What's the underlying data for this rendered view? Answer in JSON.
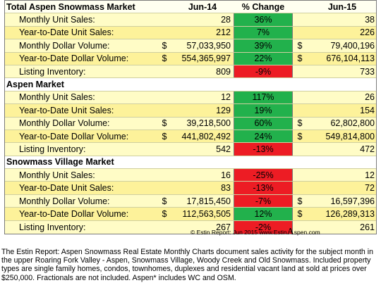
{
  "sections": [
    {
      "title": "Total Aspen Snowmass Market",
      "col_prev": "Jun-14",
      "col_change": "% Change",
      "col_curr": "Jun-15",
      "rows": [
        {
          "label": "Monthly Unit Sales:",
          "d1": "",
          "prev": "28",
          "change": "36%",
          "dir": "pos",
          "d2": "",
          "curr": "38"
        },
        {
          "label": "Year-to-Date Unit Sales:",
          "d1": "",
          "prev": "212",
          "change": "7%",
          "dir": "pos",
          "d2": "",
          "curr": "226"
        },
        {
          "label": "Monthly Dollar Volume:",
          "d1": "$",
          "prev": "57,033,950",
          "change": "39%",
          "dir": "pos",
          "d2": "$",
          "curr": "79,400,196"
        },
        {
          "label": "Year-to-Date Dollar Volume:",
          "d1": "$",
          "prev": "554,365,997",
          "change": "22%",
          "dir": "pos",
          "d2": "$",
          "curr": "676,104,113"
        },
        {
          "label": "Listing Inventory:",
          "d1": "",
          "prev": "809",
          "change": "-9%",
          "dir": "neg",
          "d2": "",
          "curr": "733"
        }
      ]
    },
    {
      "title": "Aspen Market",
      "rows": [
        {
          "label": "Monthly Unit Sales:",
          "d1": "",
          "prev": "12",
          "change": "117%",
          "dir": "pos",
          "d2": "",
          "curr": "26"
        },
        {
          "label": "Year-to-Date Unit Sales:",
          "d1": "",
          "prev": "129",
          "change": "19%",
          "dir": "pos",
          "d2": "",
          "curr": "154"
        },
        {
          "label": "Monthly Dollar Volume:",
          "d1": "$",
          "prev": "39,218,500",
          "change": "60%",
          "dir": "pos",
          "d2": "$",
          "curr": "62,802,800"
        },
        {
          "label": "Year-to-Date Dollar Volume:",
          "d1": "$",
          "prev": "441,802,492",
          "change": "24%",
          "dir": "pos",
          "d2": "$",
          "curr": "549,814,800"
        },
        {
          "label": "Listing Inventory:",
          "d1": "",
          "prev": "542",
          "change": "-13%",
          "dir": "neg",
          "d2": "",
          "curr": "472"
        }
      ]
    },
    {
      "title": "Snowmass Village Market",
      "rows": [
        {
          "label": "Monthly Unit Sales:",
          "d1": "",
          "prev": "16",
          "change": "-25%",
          "dir": "neg",
          "d2": "",
          "curr": "12"
        },
        {
          "label": "Year-to-Date Unit Sales:",
          "d1": "",
          "prev": "83",
          "change": "-13%",
          "dir": "neg",
          "d2": "",
          "curr": "72"
        },
        {
          "label": "Monthly Dollar Volume:",
          "d1": "$",
          "prev": "17,815,450",
          "change": "-7%",
          "dir": "neg",
          "d2": "$",
          "curr": "16,597,396"
        },
        {
          "label": "Year-to-Date Dollar Volume:",
          "d1": "$",
          "prev": "112,563,505",
          "change": "12%",
          "dir": "pos",
          "d2": "$",
          "curr": "126,289,313"
        },
        {
          "label": "Listing Inventory:",
          "d1": "",
          "prev": "267",
          "change": "-2%",
          "dir": "neg",
          "d2": "",
          "curr": "261"
        }
      ]
    }
  ],
  "credit": {
    "prefix": "© Estin Report: Jun 2015 www.Estin",
    "big_letter": "A",
    "suffix": "spen.com"
  },
  "description": "The Estin Report: Aspen Snowmass Real Estate Monthly Charts document sales activity for the subject month in the upper Roaring Fork Valley - Aspen, Snowmass Village, Woody Creek and Old Snowmass. Included property types are single family homes, condos, townhomes, duplexes and residential vacant land at sold at prices over $250,000. Fractionals are not included. Aspen* includes WC and OSM.",
  "colors": {
    "positive": "#22b14c",
    "negative": "#ed1c24",
    "row_light": "#fffcc6",
    "row_dark": "#fdf29a"
  }
}
